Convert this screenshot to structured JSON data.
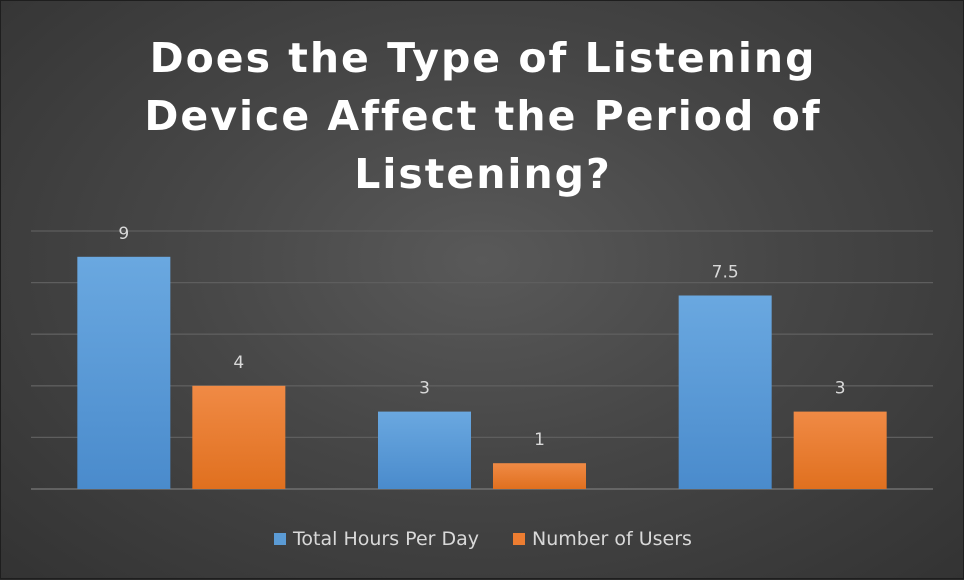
{
  "chart_data": {
    "type": "bar",
    "title_lines": [
      "Does the Type of Listening",
      "Device Affect the Period of",
      "Listening?"
    ],
    "categories": [
      "",
      "",
      ""
    ],
    "series": [
      {
        "name": "Total Hours Per Day",
        "values": [
          9,
          3,
          7.5
        ],
        "color": "#5b9bd5"
      },
      {
        "name": "Number of Users",
        "values": [
          4,
          1,
          3
        ],
        "color": "#ed7d31"
      }
    ],
    "ylim": [
      0,
      10
    ],
    "grid": true,
    "legend": "bottom"
  }
}
